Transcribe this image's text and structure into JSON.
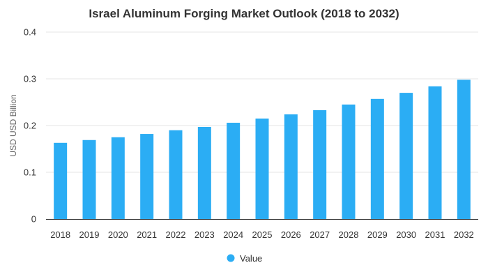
{
  "chart_data": {
    "type": "bar",
    "title": "Israel Aluminum Forging Market Outlook (2018 to 2032)",
    "xlabel": "",
    "ylabel": "USD USD Billion",
    "categories": [
      "2018",
      "2019",
      "2020",
      "2021",
      "2022",
      "2023",
      "2024",
      "2025",
      "2026",
      "2027",
      "2028",
      "2029",
      "2030",
      "2031",
      "2032"
    ],
    "series": [
      {
        "name": "Value",
        "values": [
          0.163,
          0.169,
          0.175,
          0.182,
          0.19,
          0.197,
          0.206,
          0.215,
          0.224,
          0.233,
          0.245,
          0.257,
          0.27,
          0.284,
          0.298
        ]
      }
    ],
    "ylim": [
      0,
      0.4
    ],
    "yticks": [
      "0",
      "0.1",
      "0.2",
      "0.3",
      "0.4"
    ],
    "grid": true,
    "legend_position": "bottom",
    "colors": {
      "bar": "#2BADF4",
      "grid": "#e6e6e6",
      "axis": "#333333"
    }
  }
}
